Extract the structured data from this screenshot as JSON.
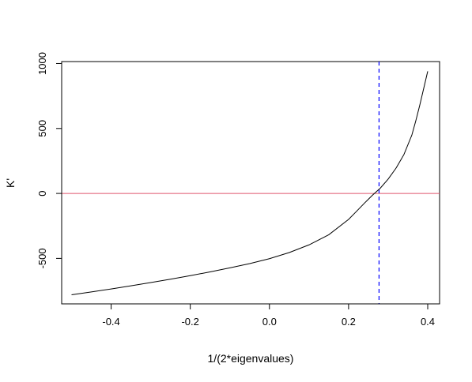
{
  "chart_data": {
    "type": "line",
    "xlabel": "1/(2*eigenvalues)",
    "ylabel": "K'",
    "xlim": [
      -0.525,
      0.43
    ],
    "ylim": [
      -850,
      1015
    ],
    "xticks": [
      {
        "value": -0.4,
        "label": "-0.4"
      },
      {
        "value": -0.2,
        "label": "-0.2"
      },
      {
        "value": 0.0,
        "label": "0.0"
      },
      {
        "value": 0.2,
        "label": "0.2"
      },
      {
        "value": 0.4,
        "label": "0.4"
      }
    ],
    "yticks": [
      {
        "value": -500,
        "label": "-500"
      },
      {
        "value": 0,
        "label": "0"
      },
      {
        "value": 500,
        "label": "500"
      },
      {
        "value": 1000,
        "label": "1000"
      }
    ],
    "series": [
      {
        "color": "#000000",
        "x": [
          -0.5,
          -0.45,
          -0.4,
          -0.35,
          -0.3,
          -0.25,
          -0.2,
          -0.15,
          -0.1,
          -0.05,
          0.0,
          0.05,
          0.1,
          0.15,
          0.2,
          0.22,
          0.24,
          0.26,
          0.28,
          0.3,
          0.32,
          0.34,
          0.36,
          0.37,
          0.38,
          0.39,
          0.4
        ],
        "y": [
          -780,
          -758,
          -735,
          -711,
          -686,
          -660,
          -633,
          -604,
          -573,
          -540,
          -502,
          -455,
          -396,
          -318,
          -200,
          -138,
          -75,
          -15,
          40,
          110,
          195,
          300,
          450,
          560,
          680,
          810,
          940
        ]
      }
    ],
    "hlines": [
      {
        "y": 0,
        "color": "#df536b"
      }
    ],
    "vlines": [
      {
        "x": 0.277,
        "color": "#0000ff",
        "dashed": true
      }
    ],
    "grid": false
  }
}
